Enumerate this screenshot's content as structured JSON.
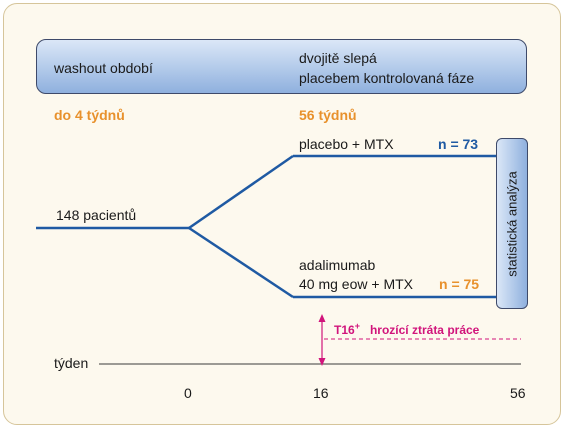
{
  "phases": {
    "washout_label": "washout období",
    "double_blind_line1": "dvojitě slepá",
    "double_blind_line2": "placebem kontrolovaná fáze",
    "washout_duration": "do 4 týdnů",
    "double_blind_duration": "56 týdnů"
  },
  "enrollment": {
    "patients_label": "148 pacientů"
  },
  "arms": [
    {
      "label_line1": "placebo + MTX",
      "label_line2": "",
      "n_label": "n = 73",
      "n_color": "#1f5aa3"
    },
    {
      "label_line1": "adalimumab",
      "label_line2": "40 mg eow + MTX",
      "n_label": "n = 75",
      "n_color": "#e8912c"
    }
  ],
  "analysis": {
    "label": "statistická analýza"
  },
  "marker": {
    "code": "T16",
    "superscript": "+",
    "description": "hrozící ztráta práce",
    "color": "#d1147b"
  },
  "timeline": {
    "axis_label": "týden",
    "ticks": [
      "0",
      "16",
      "56"
    ]
  },
  "colors": {
    "line": "#1f5aa3",
    "accent_orange": "#e8912c",
    "magenta": "#d1147b"
  }
}
